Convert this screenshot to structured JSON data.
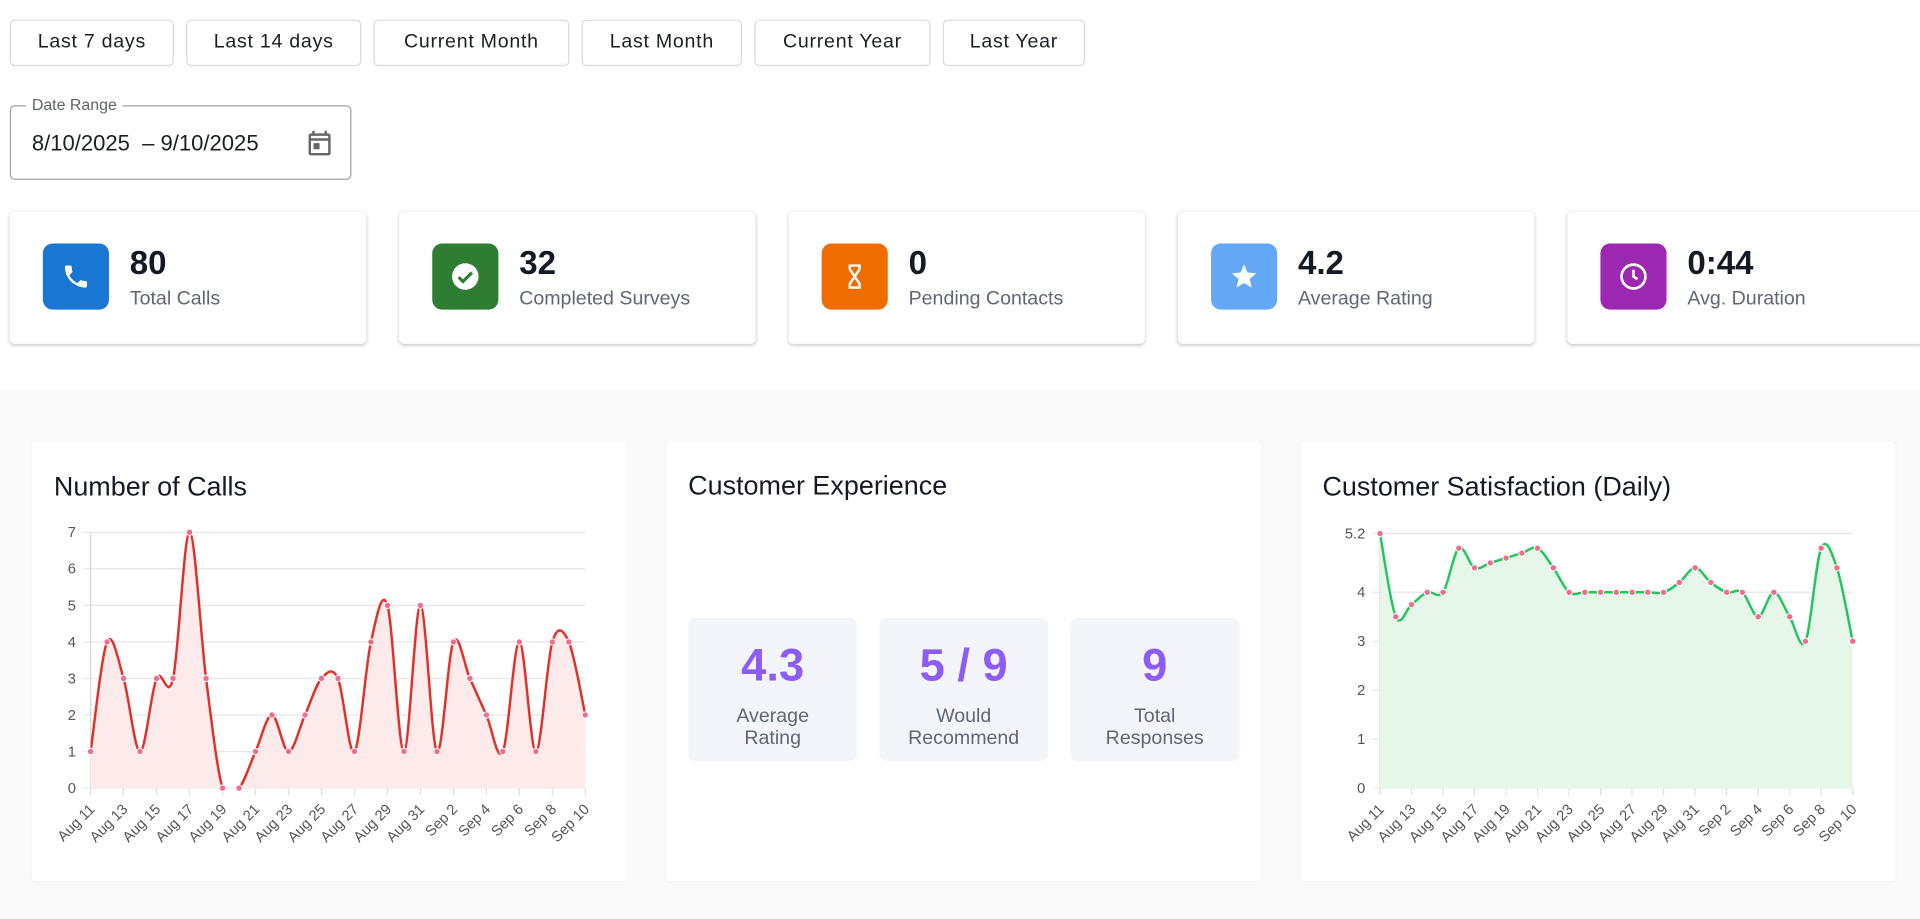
{
  "filters": [
    "Last 7 days",
    "Last 14 days",
    "Current Month",
    "Last Month",
    "Current Year",
    "Last Year"
  ],
  "date_range": {
    "label": "Date Range",
    "value": "8/10/2025  – 9/10/2025"
  },
  "stats": [
    {
      "value": 80,
      "label": "Total Calls"
    },
    {
      "value": 32,
      "label": "Completed Surveys"
    },
    {
      "value": 0,
      "label": "Pending Contacts"
    },
    {
      "value": 4.2,
      "label": "Average Rating"
    },
    {
      "value": "0:44",
      "label": "Avg. Duration"
    }
  ],
  "customer_experience": {
    "title": "Customer Experience",
    "metrics": [
      {
        "value": 4.3,
        "label": "Average Rating"
      },
      {
        "value": "5 / 9",
        "label": "Would Recommend"
      },
      {
        "value": 9,
        "label": "Total Responses"
      }
    ]
  },
  "chart_data": [
    {
      "type": "line",
      "title": "Number of Calls",
      "categories": [
        "Aug 11",
        null,
        "Aug 13",
        null,
        "Aug 15",
        null,
        "Aug 17",
        null,
        "Aug 19",
        null,
        "Aug 21",
        null,
        "Aug 23",
        null,
        "Aug 25",
        null,
        "Aug 27",
        null,
        "Aug 29",
        null,
        "Aug 31",
        null,
        "Sep 2",
        null,
        "Sep 4",
        null,
        "Sep 6",
        null,
        "Sep 8",
        null,
        "Sep 10"
      ],
      "values": [
        1,
        4,
        3,
        1,
        3,
        3,
        7,
        3,
        0,
        0,
        1,
        2,
        1,
        2,
        3,
        3,
        1,
        4,
        5,
        1,
        5,
        1,
        4,
        3,
        2,
        1,
        4,
        1,
        4,
        4,
        2
      ],
      "color": "#e0302a",
      "fill_color": "#fdeaea",
      "marker_color": "#f06c8c",
      "ylim": [
        0,
        7
      ],
      "yticks": [
        0,
        1,
        2,
        3,
        4,
        5,
        6,
        7
      ],
      "grid": true
    },
    {
      "type": "line",
      "title": "Customer Satisfaction (Daily)",
      "categories": [
        "Aug 11",
        null,
        "Aug 13",
        null,
        "Aug 15",
        null,
        "Aug 17",
        null,
        "Aug 19",
        null,
        "Aug 21",
        null,
        "Aug 23",
        null,
        "Aug 25",
        null,
        "Aug 27",
        null,
        "Aug 29",
        null,
        "Aug 31",
        null,
        "Sep 2",
        null,
        "Sep 4",
        null,
        "Sep 6",
        null,
        "Sep 8",
        null,
        "Sep 10"
      ],
      "values": [
        5.2,
        3.5,
        3.75,
        4,
        4,
        4.9,
        4.5,
        4.6,
        4.7,
        4.8,
        4.9,
        4.5,
        4,
        4,
        4,
        4,
        4,
        4,
        4,
        4.2,
        4.5,
        4.2,
        4,
        4,
        3.5,
        4,
        3.5,
        3,
        4.9,
        4.5,
        3
      ],
      "color": "#22c55e",
      "fill_color": "#e6f6e9",
      "marker_color": "#f06c8c",
      "ylim": [
        0,
        5.2
      ],
      "yticks": [
        0,
        1,
        2,
        3,
        4,
        5.2
      ],
      "grid": true
    }
  ]
}
